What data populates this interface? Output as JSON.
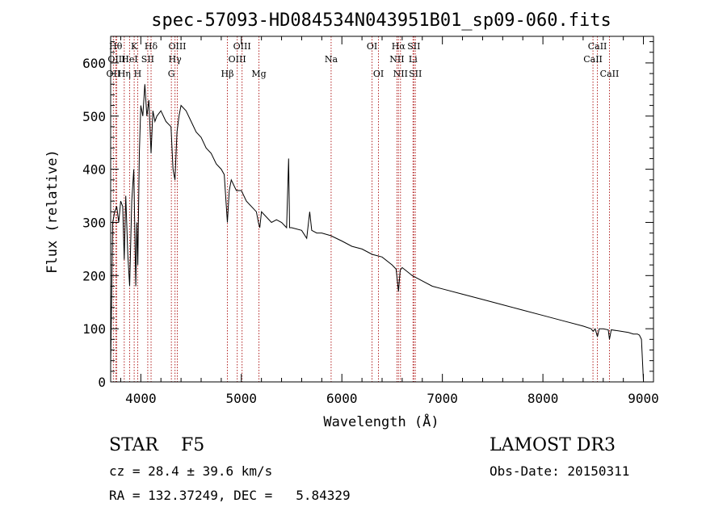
{
  "chart_data": {
    "type": "line",
    "title": "spec-57093-HD084534N043951B01_sp09-060.fits",
    "xlabel": "Wavelength (Å)",
    "ylabel": "Flux (relative)",
    "xlim": [
      3700,
      9100
    ],
    "ylim": [
      0,
      650
    ],
    "xticks": [
      4000,
      5000,
      6000,
      7000,
      8000,
      9000
    ],
    "xtick_labels": [
      "4000",
      "5000",
      "6000",
      "7000",
      "8000",
      "9000"
    ],
    "yticks": [
      0,
      100,
      200,
      300,
      400,
      500,
      600
    ],
    "ytick_labels": [
      "0",
      "100",
      "200",
      "300",
      "400",
      "500",
      "600"
    ],
    "series": [
      {
        "name": "spectrum",
        "x": [
          3700,
          3720,
          3740,
          3760,
          3780,
          3800,
          3820,
          3835,
          3850,
          3870,
          3889,
          3910,
          3930,
          3950,
          3960,
          3970,
          3985,
          4000,
          4020,
          4040,
          4060,
          4080,
          4102,
          4120,
          4140,
          4160,
          4200,
          4250,
          4300,
          4320,
          4340,
          4360,
          4380,
          4400,
          4450,
          4500,
          4550,
          4600,
          4650,
          4700,
          4750,
          4800,
          4830,
          4861,
          4880,
          4900,
          4950,
          5000,
          5050,
          5100,
          5150,
          5170,
          5183,
          5200,
          5250,
          5300,
          5350,
          5400,
          5450,
          5470,
          5480,
          5500,
          5600,
          5650,
          5680,
          5700,
          5750,
          5800,
          5890,
          6000,
          6100,
          6200,
          6300,
          6400,
          6500,
          6540,
          6563,
          6580,
          6600,
          6700,
          6800,
          6900,
          7000,
          7200,
          7400,
          7600,
          7800,
          8000,
          8200,
          8400,
          8480,
          8500,
          8520,
          8542,
          8560,
          8600,
          8650,
          8662,
          8680,
          8750,
          8850,
          8900,
          8940,
          8960,
          8980,
          9000
        ],
        "y": [
          30,
          300,
          320,
          330,
          300,
          340,
          330,
          230,
          350,
          240,
          180,
          340,
          400,
          180,
          300,
          220,
          430,
          520,
          500,
          560,
          500,
          530,
          430,
          510,
          490,
          500,
          510,
          490,
          480,
          400,
          380,
          470,
          500,
          520,
          510,
          490,
          470,
          460,
          440,
          430,
          410,
          400,
          390,
          300,
          360,
          380,
          360,
          360,
          340,
          330,
          320,
          300,
          290,
          320,
          310,
          300,
          305,
          300,
          290,
          420,
          290,
          290,
          285,
          270,
          320,
          285,
          280,
          280,
          275,
          265,
          255,
          250,
          240,
          235,
          220,
          212,
          170,
          210,
          215,
          200,
          190,
          180,
          175,
          165,
          155,
          145,
          135,
          125,
          115,
          105,
          100,
          95,
          100,
          85,
          100,
          100,
          98,
          80,
          98,
          96,
          93,
          90,
          90,
          88,
          80,
          0
        ]
      }
    ],
    "line_annotations": [
      {
        "label": "OII",
        "x": 3727,
        "row": 3
      },
      {
        "label": "Hθ",
        "x": 3750,
        "row": 1
      },
      {
        "label": "OIII",
        "x": 3760,
        "row": 2
      },
      {
        "label": "Hη",
        "x": 3835,
        "row": 3
      },
      {
        "label": "HeI",
        "x": 3889,
        "row": 2
      },
      {
        "label": "K",
        "x": 3934,
        "row": 1
      },
      {
        "label": "H",
        "x": 3969,
        "row": 3
      },
      {
        "label": "SII",
        "x": 4069,
        "row": 2
      },
      {
        "label": "Hδ",
        "x": 4102,
        "row": 1
      },
      {
        "label": "G",
        "x": 4304,
        "row": 3
      },
      {
        "label": "Hγ",
        "x": 4340,
        "row": 2
      },
      {
        "label": "OIII",
        "x": 4363,
        "row": 1
      },
      {
        "label": "Hβ",
        "x": 4861,
        "row": 3
      },
      {
        "label": "OIII",
        "x": 4959,
        "row": 2
      },
      {
        "label": "OIII",
        "x": 5007,
        "row": 1
      },
      {
        "label": "Mg",
        "x": 5175,
        "row": 3
      },
      {
        "label": "Na",
        "x": 5893,
        "row": 2
      },
      {
        "label": "OI",
        "x": 6300,
        "row": 1
      },
      {
        "label": "OI",
        "x": 6364,
        "row": 3
      },
      {
        "label": "NII",
        "x": 6548,
        "row": 2
      },
      {
        "label": "Hα",
        "x": 6563,
        "row": 1
      },
      {
        "label": "NII",
        "x": 6583,
        "row": 3
      },
      {
        "label": "Li",
        "x": 6708,
        "row": 2
      },
      {
        "label": "SII",
        "x": 6716,
        "row": 1
      },
      {
        "label": "SII",
        "x": 6731,
        "row": 3
      },
      {
        "label": "CaII",
        "x": 8498,
        "row": 2
      },
      {
        "label": "CaII",
        "x": 8542,
        "row": 1
      },
      {
        "label": "CaII",
        "x": 8662,
        "row": 3
      }
    ]
  },
  "info": {
    "class_text": "STAR    F5",
    "survey": "LAMOST DR3",
    "redshift": "cz = 28.4 ± 39.6 km/s",
    "obs_date": "Obs-Date: 20150311",
    "coords": "RA = 132.37249, DEC =   5.84329"
  },
  "colors": {
    "line": "#000000",
    "marker": "#b22222",
    "axis": "#000000"
  }
}
